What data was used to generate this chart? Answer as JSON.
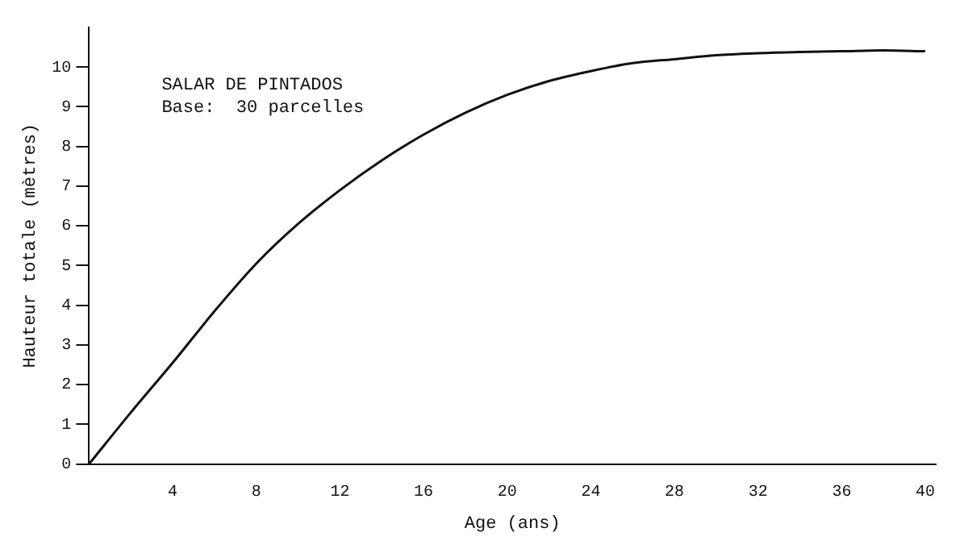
{
  "chart_data": {
    "type": "line",
    "xlabel": "Age (ans)",
    "ylabel": "Hauteur totale (mètres)",
    "annotations": [
      "SALAR DE PINTADOS",
      "Base:  30 parcelles"
    ],
    "x": [
      0,
      2,
      4,
      6,
      8,
      10,
      12,
      14,
      16,
      18,
      20,
      22,
      24,
      26,
      28,
      30,
      32,
      34,
      36,
      38,
      40
    ],
    "series": [
      {
        "color": "#111111",
        "values": [
          0,
          1.3,
          2.55,
          3.85,
          5.05,
          6.05,
          6.9,
          7.65,
          8.3,
          8.85,
          9.3,
          9.65,
          9.9,
          10.1,
          10.2,
          10.3,
          10.35,
          10.38,
          10.4,
          10.42,
          10.4
        ]
      }
    ],
    "xlim": [
      0,
      40.5
    ],
    "xticks": [
      4,
      8,
      12,
      16,
      20,
      24,
      28,
      32,
      36,
      40
    ],
    "ylim": [
      0,
      11
    ],
    "yticks": [
      0,
      1,
      2,
      3,
      4,
      5,
      6,
      7,
      8,
      9,
      10
    ],
    "grid": false,
    "legend": false,
    "marker": "none",
    "line_style": "solid"
  }
}
